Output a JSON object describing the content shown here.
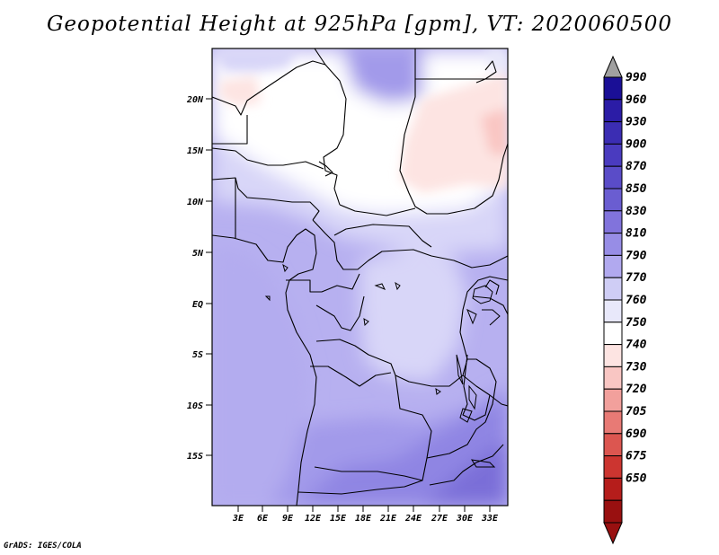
{
  "title": "Geopotential Height at 925hPa [gpm], VT: 2020060500",
  "footer": "GrADS: IGES/COLA",
  "lat_labels": [
    "20N",
    "15N",
    "10N",
    "5N",
    "EQ",
    "5S",
    "10S",
    "15S"
  ],
  "lon_labels": [
    "3E",
    "6E",
    "9E",
    "12E",
    "15E",
    "18E",
    "21E",
    "24E",
    "27E",
    "30E",
    "33E"
  ],
  "colorbar": {
    "levels": [
      "990",
      "960",
      "930",
      "900",
      "870",
      "850",
      "830",
      "810",
      "790",
      "770",
      "760",
      "750",
      "740",
      "730",
      "720",
      "705",
      "690",
      "675",
      "650"
    ],
    "colors": [
      "#1a0f96",
      "#2b1ca6",
      "#3b2db3",
      "#4a3bbf",
      "#5a4cc8",
      "#6a5dd1",
      "#8173dc",
      "#978de6",
      "#b1a9ef",
      "#cfcdf5",
      "#e8e8fa",
      "#ffffff",
      "#fde4e2",
      "#f9c6c3",
      "#f2a09c",
      "#e87a75",
      "#dc5650",
      "#cc3530",
      "#b51d1b",
      "#991010"
    ],
    "arrow_top_color": "#a0a0a0",
    "arrow_bottom_color": "#991010"
  }
}
